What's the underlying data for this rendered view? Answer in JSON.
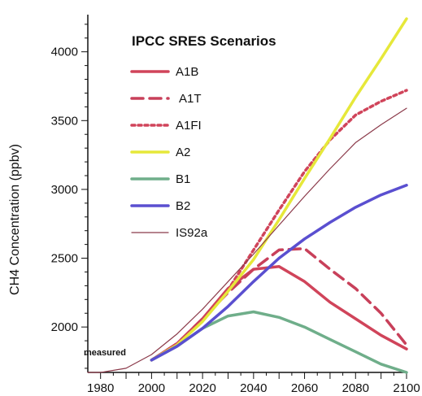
{
  "chart_data": {
    "type": "line",
    "title": "IPCC SRES Scenarios",
    "xlabel": "",
    "ylabel": "CH4 Concentration (ppbv)",
    "xlim": [
      1975,
      2100
    ],
    "ylim": [
      1670,
      4270
    ],
    "xticks": [
      1980,
      2000,
      2020,
      2040,
      2060,
      2080,
      2100
    ],
    "yticks": [
      2000,
      2500,
      3000,
      3500,
      4000
    ],
    "grid": false,
    "legend_position": "top-left",
    "annotation": "measured",
    "colors": {
      "A1B": "#d0445a",
      "A1T": "#c8405a",
      "A1FI": "#d0445a",
      "A2": "#e6e83a",
      "B1": "#6fae8a",
      "B2": "#5a4fd0",
      "IS92a": "#8b3a4a",
      "axis": "#111111"
    },
    "series": [
      {
        "name": "A1B",
        "style": "solid",
        "width": 3.5,
        "x": [
          2000,
          2010,
          2020,
          2030,
          2040,
          2050,
          2060,
          2070,
          2080,
          2090,
          2100
        ],
        "y": [
          1760,
          1880,
          2060,
          2280,
          2420,
          2440,
          2330,
          2180,
          2060,
          1940,
          1840
        ]
      },
      {
        "name": "A1T",
        "style": "dashed",
        "width": 3.5,
        "x": [
          2000,
          2010,
          2020,
          2030,
          2040,
          2050,
          2060,
          2070,
          2080,
          2090,
          2100
        ],
        "y": [
          1760,
          1880,
          2060,
          2250,
          2420,
          2560,
          2570,
          2420,
          2280,
          2100,
          1870
        ]
      },
      {
        "name": "A1FI",
        "style": "dotted",
        "width": 3.5,
        "x": [
          2000,
          2010,
          2020,
          2030,
          2040,
          2050,
          2060,
          2070,
          2080,
          2090,
          2100
        ],
        "y": [
          1760,
          1880,
          2050,
          2270,
          2560,
          2850,
          3130,
          3360,
          3540,
          3640,
          3720
        ]
      },
      {
        "name": "A2",
        "style": "solid",
        "width": 3.5,
        "x": [
          2000,
          2010,
          2020,
          2030,
          2040,
          2050,
          2060,
          2070,
          2080,
          2090,
          2100
        ],
        "y": [
          1760,
          1870,
          2040,
          2260,
          2490,
          2780,
          3080,
          3370,
          3670,
          3950,
          4240
        ]
      },
      {
        "name": "B1",
        "style": "solid",
        "width": 3.5,
        "x": [
          2000,
          2010,
          2020,
          2030,
          2040,
          2050,
          2060,
          2070,
          2080,
          2090,
          2100
        ],
        "y": [
          1760,
          1860,
          1990,
          2080,
          2110,
          2070,
          2000,
          1910,
          1820,
          1730,
          1640
        ]
      },
      {
        "name": "B2",
        "style": "solid",
        "width": 3.5,
        "x": [
          2000,
          2010,
          2020,
          2030,
          2040,
          2050,
          2060,
          2070,
          2080,
          2090,
          2100
        ],
        "y": [
          1760,
          1860,
          1990,
          2150,
          2330,
          2500,
          2640,
          2760,
          2870,
          2960,
          3030
        ]
      },
      {
        "name": "IS92a",
        "style": "solid",
        "width": 1.2,
        "x": [
          1975,
          1980,
          1990,
          2000,
          2010,
          2020,
          2030,
          2040,
          2050,
          2060,
          2070,
          2080,
          2090,
          2100
        ],
        "y": [
          1580,
          1620,
          1700,
          1800,
          1950,
          2130,
          2330,
          2530,
          2740,
          2950,
          3150,
          3340,
          3470,
          3590
        ]
      }
    ]
  }
}
